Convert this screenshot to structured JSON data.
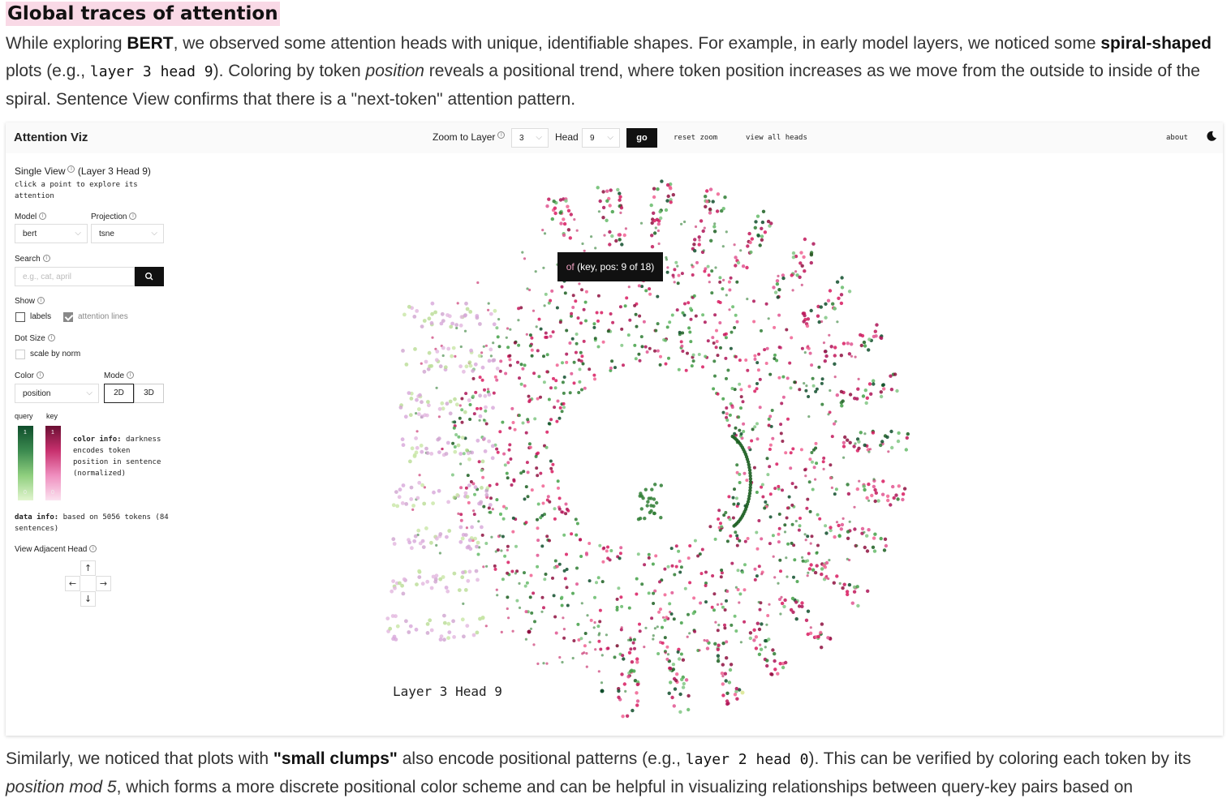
{
  "article": {
    "heading": "Global traces of attention",
    "intro": {
      "t1": "While exploring ",
      "b1": "BERT",
      "t2": ", we observed some attention heads with unique, identifiable shapes. For example, in early model layers, we noticed some ",
      "b2": "spiral-shaped",
      "t3": " plots (e.g., ",
      "code": "layer 3 head 9",
      "t4": "). Coloring by token ",
      "em": "position",
      "t5": " reveals a positional trend, where token position increases as we move from the outside to inside of the spiral. Sentence View confirms that there is a \"next-token\" attention pattern."
    },
    "outro": {
      "t1": "Similarly, we noticed that plots with ",
      "b1": "\"small clumps\"",
      "t2": " also encode positional patterns (e.g., ",
      "code": "layer 2 head 0",
      "t3": "). This can be verified by coloring each token by its ",
      "em": "position mod 5",
      "t4": ", which forms a more discrete positional color scheme and can be helpful in visualizing relationships between query-key pairs based on"
    }
  },
  "app": {
    "title": "Attention Viz",
    "toolbar": {
      "zoom_label": "Zoom to Layer",
      "layer_value": "3",
      "head_label": "Head",
      "head_value": "9",
      "go_label": "go",
      "reset_zoom": "reset zoom",
      "view_all_heads": "view all heads",
      "about": "about"
    },
    "sidebar": {
      "single_view": "Single View",
      "single_view_detail": "(Layer 3 Head 9)",
      "click_hint": "click a point to explore its attention",
      "model_label": "Model",
      "model_value": "bert",
      "projection_label": "Projection",
      "projection_value": "tsne",
      "search_label": "Search",
      "search_placeholder": "e.g., cat, april",
      "show_label": "Show",
      "labels_option": "labels",
      "labels_checked": false,
      "attention_lines_option": "attention lines",
      "attention_lines_checked": true,
      "dot_size_label": "Dot Size",
      "scale_by_norm": "scale by norm",
      "scale_by_norm_checked": false,
      "color_label": "Color",
      "color_value": "position",
      "mode_label": "Mode",
      "mode_options": [
        "2D",
        "3D"
      ],
      "mode_selected": "2D",
      "legend": {
        "query_label": "query",
        "key_label": "key",
        "query_top": "1",
        "query_bottom": "0",
        "key_top": "1",
        "key_bottom": "0",
        "query_colors": [
          "#0f4d2b",
          "#3b8a4f",
          "#8fcf7e",
          "#e2f5cf"
        ],
        "key_colors": [
          "#6b0f33",
          "#c8306e",
          "#ef8fbf",
          "#fbe3f0"
        ]
      },
      "color_info_bold": "color info:",
      "color_info_text": "darkness encodes token position in sentence (normalized)",
      "data_info_bold": "data info:",
      "data_info_text": "based on 5056 tokens (84 sentences)",
      "adjacent_head_label": "View Adjacent Head",
      "arrows": [
        "up-arrow",
        "left-arrow",
        "right-arrow",
        "down-arrow"
      ]
    },
    "tooltip": {
      "token": "of",
      "detail": "(key, pos: 9 of 18)"
    },
    "plot_caption": "Layer 3 Head 9"
  }
}
